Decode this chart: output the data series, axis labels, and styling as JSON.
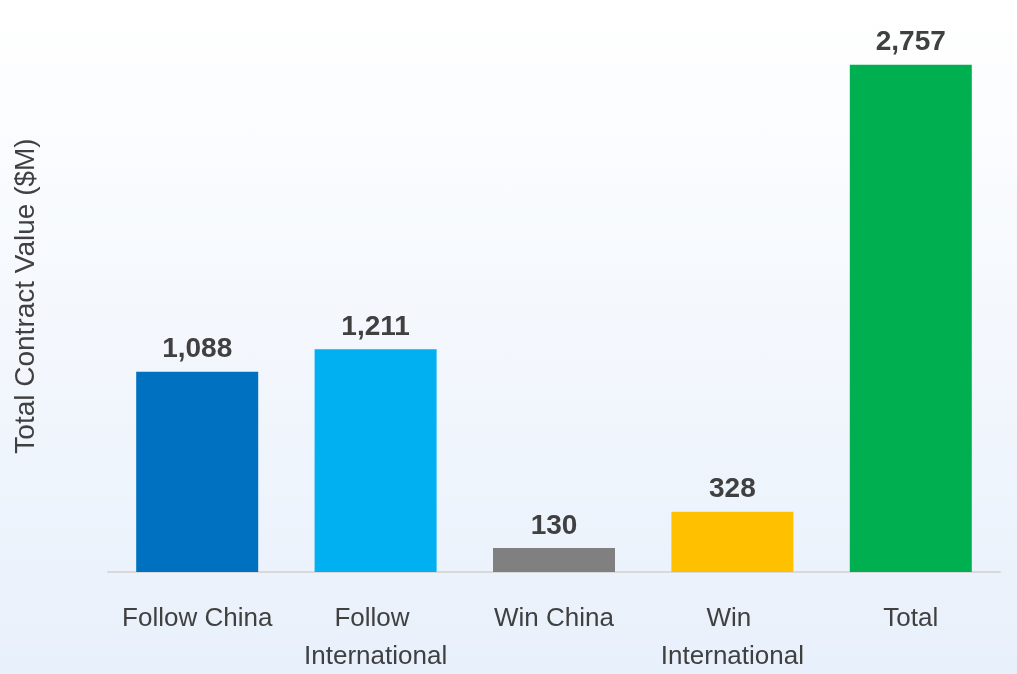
{
  "chart_data": {
    "type": "bar",
    "ylabel": "Total Contract Value ($M)",
    "categories": [
      "Follow China",
      "Follow International",
      "Win China",
      "Win International",
      "Total"
    ],
    "values": [
      1088,
      1211,
      130,
      328,
      2757
    ],
    "colors": [
      "#0070c0",
      "#00b0f0",
      "#808080",
      "#ffc000",
      "#00b050"
    ],
    "value_labels": [
      "1,088",
      "1,211",
      "130",
      "328",
      "2,757"
    ]
  }
}
